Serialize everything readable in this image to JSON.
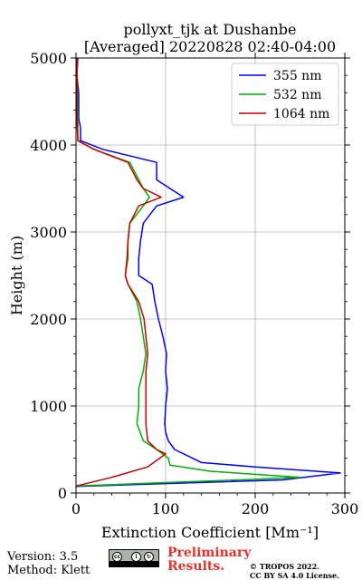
{
  "chart_data": {
    "type": "line",
    "title_line1": "pollyxt_tjk at Dushanbe",
    "title_line2": "[Averaged] 20220828 02:40-04:00",
    "xlabel": "Extinction Coefficient [Mm⁻¹]",
    "ylabel": "Height (m)",
    "xlim": [
      0,
      300
    ],
    "ylim": [
      0,
      5000
    ],
    "xticks": [
      0,
      100,
      200,
      300
    ],
    "yticks": [
      0,
      1000,
      2000,
      3000,
      4000,
      5000
    ],
    "grid": true,
    "legend_position": "top-right",
    "series": [
      {
        "name": "355 nm",
        "color": "#0000ff",
        "points": [
          [
            0,
            75
          ],
          [
            120,
            115
          ],
          [
            230,
            150
          ],
          [
            295,
            230
          ],
          [
            200,
            300
          ],
          [
            140,
            350
          ],
          [
            130,
            400
          ],
          [
            110,
            500
          ],
          [
            103,
            600
          ],
          [
            100,
            700
          ],
          [
            99,
            800
          ],
          [
            100,
            1000
          ],
          [
            102,
            1200
          ],
          [
            100,
            1400
          ],
          [
            101,
            1600
          ],
          [
            97,
            1800
          ],
          [
            92,
            2000
          ],
          [
            88,
            2200
          ],
          [
            85,
            2400
          ],
          [
            70,
            2500
          ],
          [
            70,
            2700
          ],
          [
            72,
            2900
          ],
          [
            75,
            3100
          ],
          [
            90,
            3300
          ],
          [
            120,
            3400
          ],
          [
            105,
            3500
          ],
          [
            90,
            3600
          ],
          [
            90,
            3800
          ],
          [
            30,
            3950
          ],
          [
            5,
            4050
          ],
          [
            5,
            4200
          ],
          [
            3,
            4300
          ],
          [
            3,
            4600
          ],
          [
            1,
            4800
          ],
          [
            2,
            5000
          ]
        ]
      },
      {
        "name": "532 nm",
        "color": "#00b000",
        "points": [
          [
            0,
            80
          ],
          [
            100,
            120
          ],
          [
            180,
            150
          ],
          [
            250,
            180
          ],
          [
            150,
            250
          ],
          [
            105,
            320
          ],
          [
            103,
            400
          ],
          [
            90,
            500
          ],
          [
            75,
            600
          ],
          [
            68,
            800
          ],
          [
            70,
            1000
          ],
          [
            70,
            1200
          ],
          [
            75,
            1400
          ],
          [
            78,
            1600
          ],
          [
            75,
            1800
          ],
          [
            72,
            2000
          ],
          [
            68,
            2200
          ],
          [
            58,
            2400
          ],
          [
            55,
            2500
          ],
          [
            58,
            2700
          ],
          [
            58,
            2900
          ],
          [
            60,
            3100
          ],
          [
            75,
            3300
          ],
          [
            82,
            3400
          ],
          [
            75,
            3500
          ],
          [
            70,
            3600
          ],
          [
            60,
            3800
          ],
          [
            20,
            3950
          ],
          [
            2,
            4050
          ],
          [
            2,
            4300
          ],
          [
            1,
            5000
          ]
        ]
      },
      {
        "name": "1064 nm",
        "color": "#cc0000",
        "points": [
          [
            0,
            80
          ],
          [
            40,
            180
          ],
          [
            80,
            300
          ],
          [
            100,
            450
          ],
          [
            90,
            500
          ],
          [
            80,
            600
          ],
          [
            78,
            800
          ],
          [
            78,
            1000
          ],
          [
            78,
            1200
          ],
          [
            78,
            1400
          ],
          [
            80,
            1600
          ],
          [
            78,
            1800
          ],
          [
            76,
            2000
          ],
          [
            70,
            2200
          ],
          [
            58,
            2400
          ],
          [
            55,
            2500
          ],
          [
            57,
            2700
          ],
          [
            58,
            2900
          ],
          [
            60,
            3100
          ],
          [
            70,
            3300
          ],
          [
            95,
            3400
          ],
          [
            75,
            3500
          ],
          [
            68,
            3600
          ],
          [
            58,
            3800
          ],
          [
            20,
            3950
          ],
          [
            2,
            4050
          ],
          [
            1,
            4300
          ],
          [
            1,
            5000
          ]
        ]
      }
    ]
  },
  "footer": {
    "version": "Version: 3.5",
    "method": "Method: Klett",
    "preliminary_line1": "Preliminary",
    "preliminary_line2": "Results.",
    "copyright_line1": "© TROPOS 2022.",
    "copyright_line2": "CC BY SA 4.0 License.",
    "cc_badge_text": "cc"
  }
}
